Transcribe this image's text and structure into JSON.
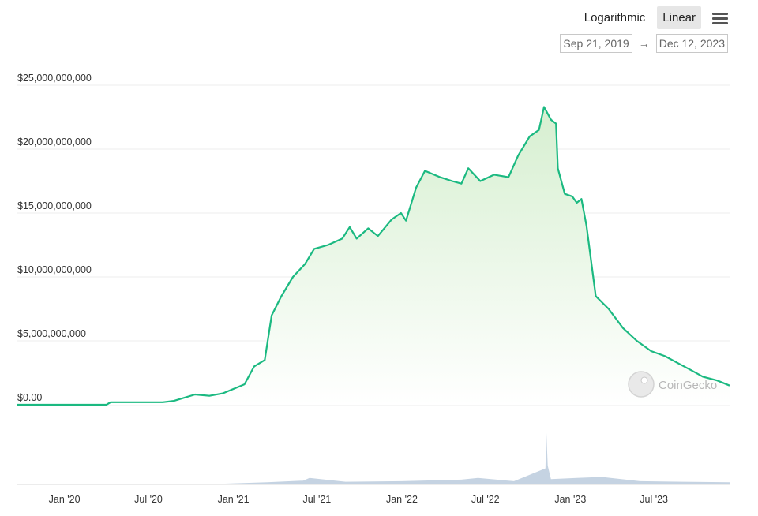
{
  "controls": {
    "scale_options": [
      "Logarithmic",
      "Linear"
    ],
    "selected_scale": "Linear",
    "menu_icon": "hamburger-menu-icon",
    "date_from": "Sep 21, 2019",
    "date_arrow": "→",
    "date_to": "Dec 12, 2023"
  },
  "watermark": "CoinGecko",
  "colors": {
    "line": "#1bb981",
    "fill_top": "#d6efd0",
    "fill_bottom": "#ffffff",
    "volume": "#c5d3e2",
    "grid": "#ececec"
  },
  "chart_data": {
    "type": "area",
    "xlabel": "",
    "ylabel": "",
    "x_range": [
      "2019-09-21",
      "2023-12-12"
    ],
    "ylim": [
      0,
      25000000000
    ],
    "y_tick_labels": [
      "$0.00",
      "$5,000,000,000",
      "$10,000,000,000",
      "$15,000,000,000",
      "$20,000,000,000",
      "$25,000,000,000"
    ],
    "y_tick_values": [
      0,
      5000000000,
      10000000000,
      15000000000,
      20000000000,
      25000000000
    ],
    "x_tick_labels": [
      "Jan '20",
      "Jul '20",
      "Jan '21",
      "Jul '21",
      "Jan '22",
      "Jul '22",
      "Jan '23",
      "Jul '23"
    ],
    "x_tick_dates": [
      "2020-01-01",
      "2020-07-01",
      "2021-01-01",
      "2021-07-01",
      "2022-01-01",
      "2022-07-01",
      "2023-01-01",
      "2023-07-01"
    ],
    "grid": true,
    "series": [
      {
        "values": [
          [
            "2019-09-21",
            0
          ],
          [
            "2020-01-15",
            0
          ],
          [
            "2020-04-01",
            0
          ],
          [
            "2020-04-10",
            200000000
          ],
          [
            "2020-06-01",
            200000000
          ],
          [
            "2020-08-01",
            200000000
          ],
          [
            "2020-08-25",
            300000000
          ],
          [
            "2020-10-10",
            800000000
          ],
          [
            "2020-11-10",
            700000000
          ],
          [
            "2020-12-10",
            900000000
          ],
          [
            "2021-01-25",
            1600000000
          ],
          [
            "2021-02-15",
            3000000000
          ],
          [
            "2021-03-10",
            3500000000
          ],
          [
            "2021-03-25",
            7000000000
          ],
          [
            "2021-04-15",
            8500000000
          ],
          [
            "2021-05-10",
            10000000000
          ],
          [
            "2021-06-05",
            11000000000
          ],
          [
            "2021-06-25",
            12200000000
          ],
          [
            "2021-07-25",
            12500000000
          ],
          [
            "2021-08-25",
            13000000000
          ],
          [
            "2021-09-10",
            13900000000
          ],
          [
            "2021-09-25",
            13000000000
          ],
          [
            "2021-10-20",
            13800000000
          ],
          [
            "2021-11-10",
            13200000000
          ],
          [
            "2021-12-10",
            14500000000
          ],
          [
            "2021-12-30",
            15000000000
          ],
          [
            "2022-01-10",
            14400000000
          ],
          [
            "2022-02-01",
            17000000000
          ],
          [
            "2022-02-20",
            18300000000
          ],
          [
            "2022-03-25",
            17800000000
          ],
          [
            "2022-04-20",
            17500000000
          ],
          [
            "2022-05-10",
            17300000000
          ],
          [
            "2022-05-25",
            18500000000
          ],
          [
            "2022-06-20",
            17500000000
          ],
          [
            "2022-07-20",
            18000000000
          ],
          [
            "2022-08-20",
            17800000000
          ],
          [
            "2022-09-10",
            19500000000
          ],
          [
            "2022-10-05",
            21000000000
          ],
          [
            "2022-10-25",
            21500000000
          ],
          [
            "2022-11-05",
            23300000000
          ],
          [
            "2022-11-20",
            22300000000
          ],
          [
            "2022-12-01",
            22000000000
          ],
          [
            "2022-12-05",
            18500000000
          ],
          [
            "2022-12-20",
            16500000000
          ],
          [
            "2023-01-05",
            16300000000
          ],
          [
            "2023-01-15",
            15800000000
          ],
          [
            "2023-01-25",
            16100000000
          ],
          [
            "2023-02-05",
            14000000000
          ],
          [
            "2023-02-25",
            8500000000
          ],
          [
            "2023-03-25",
            7500000000
          ],
          [
            "2023-04-25",
            6000000000
          ],
          [
            "2023-05-25",
            5000000000
          ],
          [
            "2023-06-25",
            4200000000
          ],
          [
            "2023-07-25",
            3800000000
          ],
          [
            "2023-08-25",
            3200000000
          ],
          [
            "2023-09-20",
            2700000000
          ],
          [
            "2023-10-15",
            2200000000
          ],
          [
            "2023-11-15",
            1900000000
          ],
          [
            "2023-12-12",
            1500000000
          ]
        ]
      }
    ],
    "volume_max": 1,
    "volume": [
      [
        "2019-09-21",
        0
      ],
      [
        "2020-12-01",
        0.01
      ],
      [
        "2021-03-15",
        0.04
      ],
      [
        "2021-06-01",
        0.07
      ],
      [
        "2021-06-15",
        0.12
      ],
      [
        "2021-09-01",
        0.05
      ],
      [
        "2022-01-01",
        0.06
      ],
      [
        "2022-05-10",
        0.09
      ],
      [
        "2022-06-15",
        0.12
      ],
      [
        "2022-09-01",
        0.06
      ],
      [
        "2022-11-08",
        0.3
      ],
      [
        "2022-11-10",
        1.0
      ],
      [
        "2022-11-13",
        0.35
      ],
      [
        "2022-11-20",
        0.1
      ],
      [
        "2023-01-15",
        0.12
      ],
      [
        "2023-03-10",
        0.14
      ],
      [
        "2023-06-01",
        0.06
      ],
      [
        "2023-09-01",
        0.05
      ],
      [
        "2023-12-12",
        0.04
      ]
    ]
  }
}
